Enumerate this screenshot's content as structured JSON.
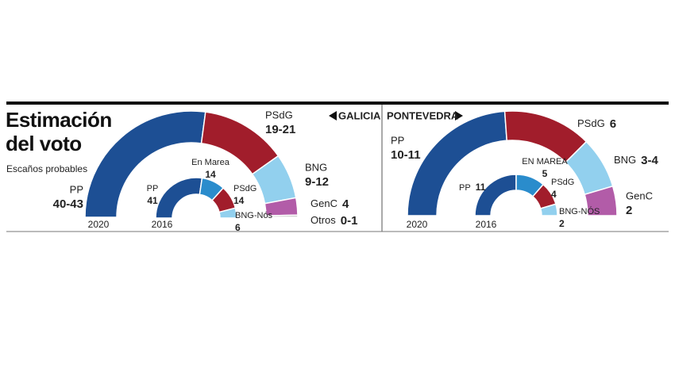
{
  "title": "Estimación del voto",
  "subtitle": "Escaños probables",
  "chart_data": [
    {
      "type": "half_donut",
      "region": "GALICIA",
      "year": "2020",
      "categories": [
        "PP",
        "PSdG",
        "BNG",
        "GenC",
        "Otros"
      ],
      "values_low": [
        40,
        19,
        9,
        4,
        0
      ],
      "values_high": [
        43,
        21,
        12,
        4,
        1
      ],
      "value_labels": [
        "40-43",
        "19-21",
        "9-12",
        "4",
        "0-1"
      ],
      "colors": [
        "#1d4f94",
        "#a11d2b",
        "#92d0ee",
        "#b25ca8",
        "#c8c8c8"
      ]
    },
    {
      "type": "half_donut",
      "year": "2016",
      "categories": [
        "PP",
        "En Marea",
        "PSdG",
        "BNG-Nós"
      ],
      "values": [
        41,
        14,
        14,
        6
      ],
      "colors": [
        "#1d4f94",
        "#2a8ccc",
        "#a11d2b",
        "#92d0ee"
      ]
    },
    {
      "type": "half_donut",
      "region": "PONTEVEDRA",
      "year": "2020",
      "categories": [
        "PP",
        "PSdG",
        "BNG",
        "GenC"
      ],
      "values_low": [
        10,
        6,
        3,
        2
      ],
      "values_high": [
        11,
        6,
        4,
        2
      ],
      "value_labels": [
        "10-11",
        "6",
        "3-4",
        "2"
      ],
      "colors": [
        "#1d4f94",
        "#a11d2b",
        "#92d0ee",
        "#b25ca8"
      ]
    },
    {
      "type": "half_donut",
      "year": "2016",
      "categories": [
        "PP",
        "EN MAREA",
        "PSdG",
        "BNG-NÓS"
      ],
      "values": [
        11,
        5,
        4,
        2
      ],
      "colors": [
        "#1d4f94",
        "#2a8ccc",
        "#a11d2b",
        "#92d0ee"
      ]
    }
  ]
}
